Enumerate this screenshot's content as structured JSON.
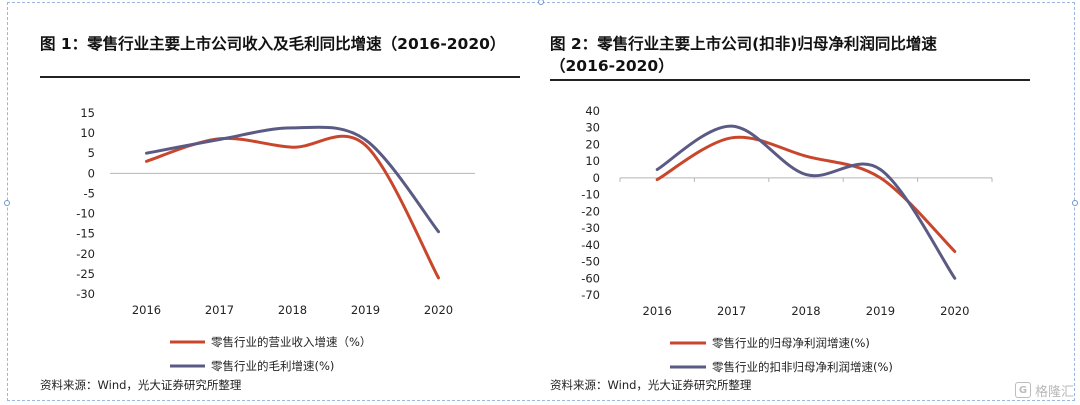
{
  "watermark": {
    "logo_letter": "G",
    "text": "格隆汇"
  },
  "chart_data": [
    {
      "type": "line",
      "title": "图 1：零售行业主要上市公司收入及毛利同比增速（2016-2020）",
      "categories": [
        "2016",
        "2017",
        "2018",
        "2019",
        "2020"
      ],
      "ylim": [
        -30,
        15
      ],
      "yticks": [
        15,
        10,
        5,
        0,
        -5,
        -10,
        -15,
        -20,
        -25,
        -30
      ],
      "grid": false,
      "legend_position": "bottom",
      "series": [
        {
          "name": "零售行业的营业收入增速（%）",
          "color": "#c8472c",
          "values": [
            3,
            8.6,
            6.5,
            7,
            -26
          ]
        },
        {
          "name": "零售行业的毛利增速(%)",
          "color": "#5a5a84",
          "values": [
            5,
            8.4,
            11.3,
            8.3,
            -14.5
          ]
        }
      ],
      "source": "资料来源：Wind，光大证券研究所整理"
    },
    {
      "type": "line",
      "title": "图 2：零售行业主要上市公司(扣非)归母净利润同比增速（2016-2020）",
      "categories": [
        "2016",
        "2017",
        "2018",
        "2019",
        "2020"
      ],
      "ylim": [
        -70,
        40
      ],
      "yticks": [
        40,
        30,
        20,
        10,
        0,
        -10,
        -20,
        -30,
        -40,
        -50,
        -60,
        -70
      ],
      "grid": false,
      "legend_position": "bottom",
      "series": [
        {
          "name": "零售行业的归母净利润增速(%)",
          "color": "#c8472c",
          "values": [
            -1,
            24,
            13,
            0,
            -44
          ]
        },
        {
          "name": "零售行业的扣非归母净利润增速(%)",
          "color": "#5a5a84",
          "values": [
            5,
            31,
            2,
            5,
            -60
          ]
        }
      ],
      "source": "资料来源：Wind，光大证券研究所整理"
    }
  ]
}
